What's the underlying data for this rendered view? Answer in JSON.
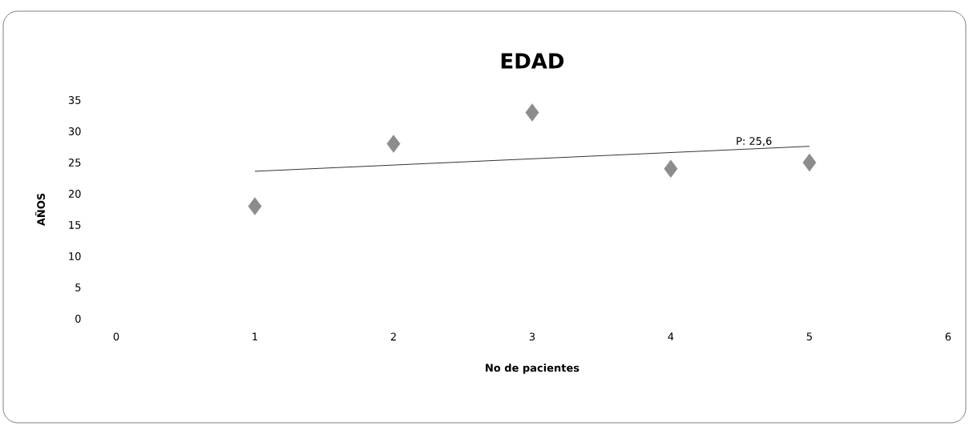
{
  "chart_data": {
    "type": "scatter",
    "title": "EDAD",
    "xlabel": "No de pacientes",
    "ylabel": "AÑOS",
    "series": [
      {
        "color": "#8c8c8c",
        "x": [
          1,
          2,
          3,
          4,
          5
        ],
        "values": [
          18,
          28,
          33,
          24,
          25
        ],
        "marker": "diamond"
      },
      {
        "type": "line",
        "color": "#000000",
        "x": [
          1,
          5
        ],
        "values": [
          23.6,
          27.6
        ],
        "marker": "none"
      }
    ],
    "annotations": [
      {
        "text": "P:  25,6",
        "x": 4.6,
        "y": 27.2
      }
    ],
    "xlim": [
      0,
      6
    ],
    "xticks": [
      0,
      1,
      2,
      3,
      4,
      5,
      6
    ],
    "ylim": [
      0,
      35
    ],
    "yticks": [
      0,
      5,
      10,
      15,
      20,
      25,
      30,
      35
    ]
  }
}
